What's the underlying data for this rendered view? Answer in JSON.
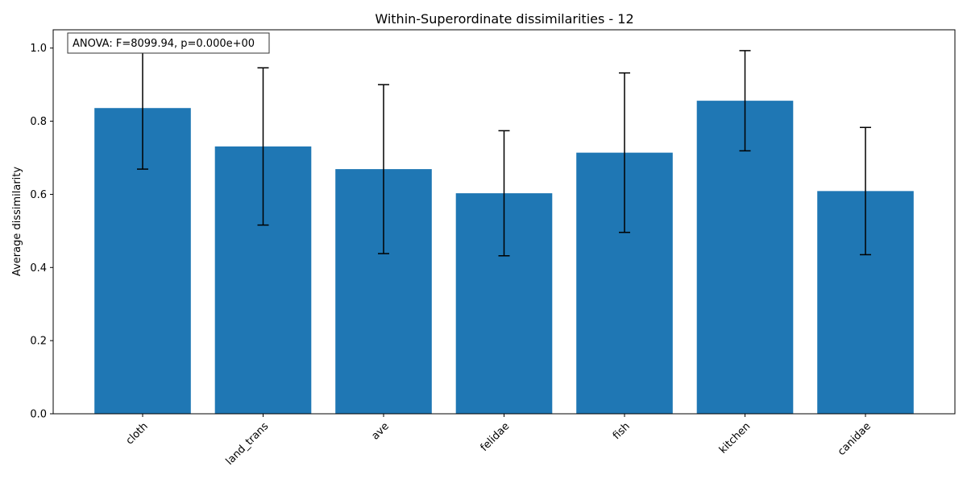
{
  "chart_data": {
    "type": "bar",
    "title": "Within-Superordinate dissimilarities - 12",
    "xlabel": "",
    "ylabel": "Average dissimilarity",
    "categories": [
      "cloth",
      "land_trans",
      "ave",
      "felidae",
      "fish",
      "kitchen",
      "canidae"
    ],
    "values": [
      0.836,
      0.731,
      0.669,
      0.603,
      0.714,
      0.856,
      0.609
    ],
    "error": [
      0.167,
      0.215,
      0.231,
      0.171,
      0.218,
      0.137,
      0.174
    ],
    "ylim": [
      0,
      1.05
    ],
    "yticks": [
      0.0,
      0.2,
      0.4,
      0.6,
      0.8,
      1.0
    ],
    "ytick_labels": [
      "0.0",
      "0.2",
      "0.4",
      "0.6",
      "0.8",
      "1.0"
    ],
    "bar_color": "#1f77b4",
    "error_color": "#000000",
    "grid": false,
    "annotation": "ANOVA: F=8099.94, p=0.000e+00",
    "annotation_placement": "top-left"
  }
}
